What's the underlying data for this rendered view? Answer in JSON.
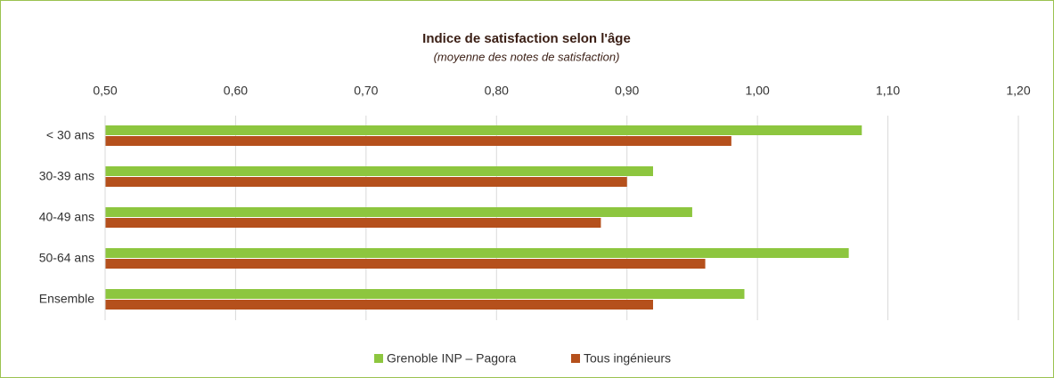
{
  "chart_data": {
    "type": "barh",
    "title": "Indice de satisfaction selon l'âge",
    "subtitle": "(moyenne des notes de satisfaction)",
    "categories": [
      "< 30 ans",
      "30-39 ans",
      "40-49 ans",
      "50-64 ans",
      "Ensemble"
    ],
    "series": [
      {
        "name": "Grenoble INP – Pagora",
        "color": "#8dc63f",
        "values": [
          1.08,
          0.92,
          0.95,
          1.07,
          0.99
        ]
      },
      {
        "name": "Tous ingénieurs",
        "color": "#b5501c",
        "values": [
          0.98,
          0.9,
          0.88,
          0.96,
          0.92
        ]
      }
    ],
    "xlim": [
      0.5,
      1.2
    ],
    "xticks": [
      {
        "value": 0.5,
        "label": "0,50"
      },
      {
        "value": 0.6,
        "label": "0,60"
      },
      {
        "value": 0.7,
        "label": "0,70"
      },
      {
        "value": 0.8,
        "label": "0,80"
      },
      {
        "value": 0.9,
        "label": "0,90"
      },
      {
        "value": 1.0,
        "label": "1,00"
      },
      {
        "value": 1.1,
        "label": "1,10"
      },
      {
        "value": 1.2,
        "label": "1,20"
      }
    ],
    "grid": true,
    "legend": "bottom"
  }
}
